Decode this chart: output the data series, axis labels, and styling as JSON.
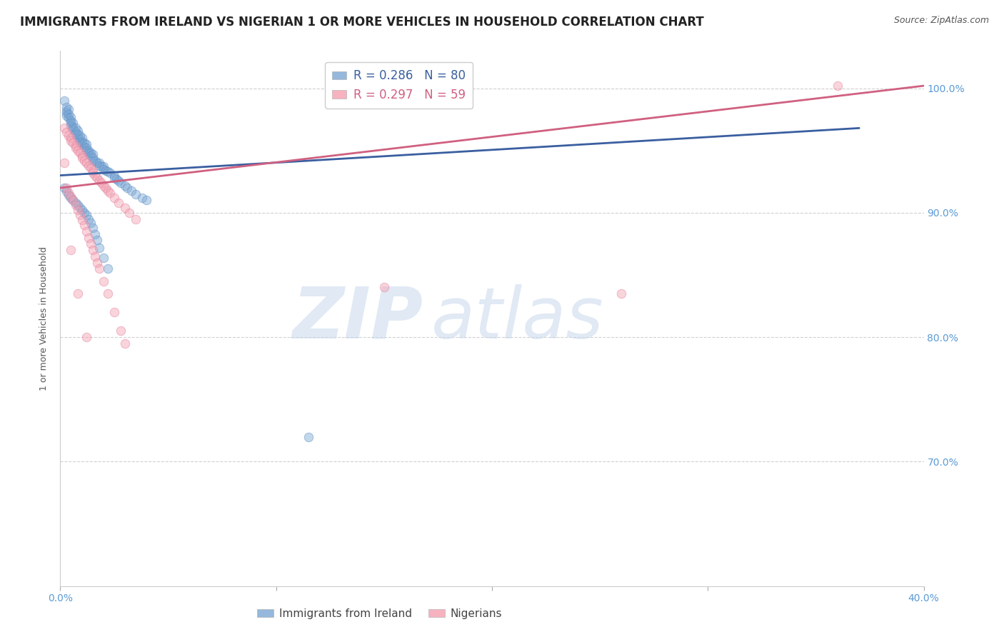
{
  "title": "IMMIGRANTS FROM IRELAND VS NIGERIAN 1 OR MORE VEHICLES IN HOUSEHOLD CORRELATION CHART",
  "source": "Source: ZipAtlas.com",
  "ylabel": "1 or more Vehicles in Household",
  "xlim": [
    0.0,
    0.4
  ],
  "ylim": [
    0.6,
    1.03
  ],
  "ytick_positions": [
    0.7,
    0.8,
    0.9,
    1.0
  ],
  "ytick_labels": [
    "70.0%",
    "80.0%",
    "90.0%",
    "100.0%"
  ],
  "xtick_positions": [
    0.0,
    0.1,
    0.2,
    0.3,
    0.4
  ],
  "xtick_labels": [
    "0.0%",
    "",
    "",
    "",
    "40.0%"
  ],
  "grid_color": "#d0d0d0",
  "background_color": "#ffffff",
  "ireland_color": "#7ba7d4",
  "ireland_edge_color": "#5b8ec4",
  "ireland_line_color": "#3a5fa0",
  "nigeria_color": "#f4a0b0",
  "nigeria_edge_color": "#e080a0",
  "nigeria_line_color": "#d06080",
  "legend_ireland_R": "R = 0.286",
  "legend_ireland_N": "N = 80",
  "legend_nigeria_R": "R = 0.297",
  "legend_nigeria_N": "N = 59",
  "ireland_x": [
    0.002,
    0.003,
    0.003,
    0.003,
    0.003,
    0.004,
    0.004,
    0.004,
    0.005,
    0.005,
    0.005,
    0.005,
    0.006,
    0.006,
    0.006,
    0.007,
    0.007,
    0.007,
    0.008,
    0.008,
    0.008,
    0.009,
    0.009,
    0.009,
    0.01,
    0.01,
    0.01,
    0.011,
    0.011,
    0.012,
    0.012,
    0.012,
    0.013,
    0.013,
    0.014,
    0.014,
    0.015,
    0.015,
    0.015,
    0.016,
    0.017,
    0.018,
    0.018,
    0.019,
    0.02,
    0.02,
    0.021,
    0.022,
    0.023,
    0.025,
    0.025,
    0.026,
    0.027,
    0.028,
    0.03,
    0.031,
    0.033,
    0.035,
    0.038,
    0.04,
    0.002,
    0.003,
    0.004,
    0.005,
    0.006,
    0.007,
    0.008,
    0.009,
    0.01,
    0.011,
    0.012,
    0.013,
    0.014,
    0.015,
    0.016,
    0.017,
    0.018,
    0.02,
    0.022,
    0.115
  ],
  "ireland_y": [
    0.99,
    0.985,
    0.982,
    0.98,
    0.978,
    0.983,
    0.979,
    0.976,
    0.977,
    0.974,
    0.972,
    0.97,
    0.972,
    0.969,
    0.967,
    0.968,
    0.965,
    0.963,
    0.966,
    0.963,
    0.96,
    0.962,
    0.959,
    0.957,
    0.96,
    0.957,
    0.955,
    0.956,
    0.953,
    0.955,
    0.952,
    0.95,
    0.95,
    0.948,
    0.948,
    0.946,
    0.947,
    0.944,
    0.942,
    0.942,
    0.94,
    0.94,
    0.938,
    0.937,
    0.937,
    0.935,
    0.934,
    0.933,
    0.932,
    0.93,
    0.928,
    0.927,
    0.926,
    0.924,
    0.922,
    0.92,
    0.918,
    0.915,
    0.912,
    0.91,
    0.92,
    0.917,
    0.914,
    0.912,
    0.91,
    0.908,
    0.906,
    0.904,
    0.902,
    0.9,
    0.898,
    0.895,
    0.892,
    0.888,
    0.883,
    0.878,
    0.872,
    0.864,
    0.855,
    0.72
  ],
  "nigeria_x": [
    0.002,
    0.003,
    0.004,
    0.005,
    0.005,
    0.006,
    0.007,
    0.007,
    0.008,
    0.009,
    0.01,
    0.01,
    0.011,
    0.012,
    0.013,
    0.014,
    0.015,
    0.015,
    0.016,
    0.017,
    0.018,
    0.019,
    0.02,
    0.021,
    0.022,
    0.023,
    0.025,
    0.027,
    0.03,
    0.032,
    0.035,
    0.003,
    0.004,
    0.005,
    0.006,
    0.007,
    0.008,
    0.009,
    0.01,
    0.011,
    0.012,
    0.013,
    0.014,
    0.015,
    0.016,
    0.017,
    0.018,
    0.02,
    0.022,
    0.025,
    0.028,
    0.03,
    0.002,
    0.005,
    0.008,
    0.012,
    0.15,
    0.26,
    0.36
  ],
  "nigeria_y": [
    0.968,
    0.965,
    0.962,
    0.96,
    0.958,
    0.956,
    0.954,
    0.952,
    0.95,
    0.948,
    0.946,
    0.944,
    0.942,
    0.94,
    0.938,
    0.936,
    0.934,
    0.932,
    0.93,
    0.928,
    0.926,
    0.924,
    0.922,
    0.92,
    0.918,
    0.916,
    0.912,
    0.908,
    0.904,
    0.9,
    0.895,
    0.92,
    0.916,
    0.913,
    0.91,
    0.906,
    0.902,
    0.898,
    0.894,
    0.89,
    0.885,
    0.88,
    0.875,
    0.87,
    0.865,
    0.86,
    0.855,
    0.845,
    0.835,
    0.82,
    0.805,
    0.795,
    0.94,
    0.87,
    0.835,
    0.8,
    0.84,
    0.835,
    1.002
  ],
  "watermark_zip": "ZIP",
  "watermark_atlas": "atlas",
  "title_fontsize": 12,
  "tick_label_color": "#5b9bd5",
  "marker_size": 80,
  "marker_alpha": 0.45,
  "ireland_line_x": [
    0.0,
    0.37
  ],
  "ireland_line_y": [
    0.93,
    0.968
  ],
  "nigeria_line_x": [
    0.0,
    0.4
  ],
  "nigeria_line_y": [
    0.92,
    1.002
  ]
}
